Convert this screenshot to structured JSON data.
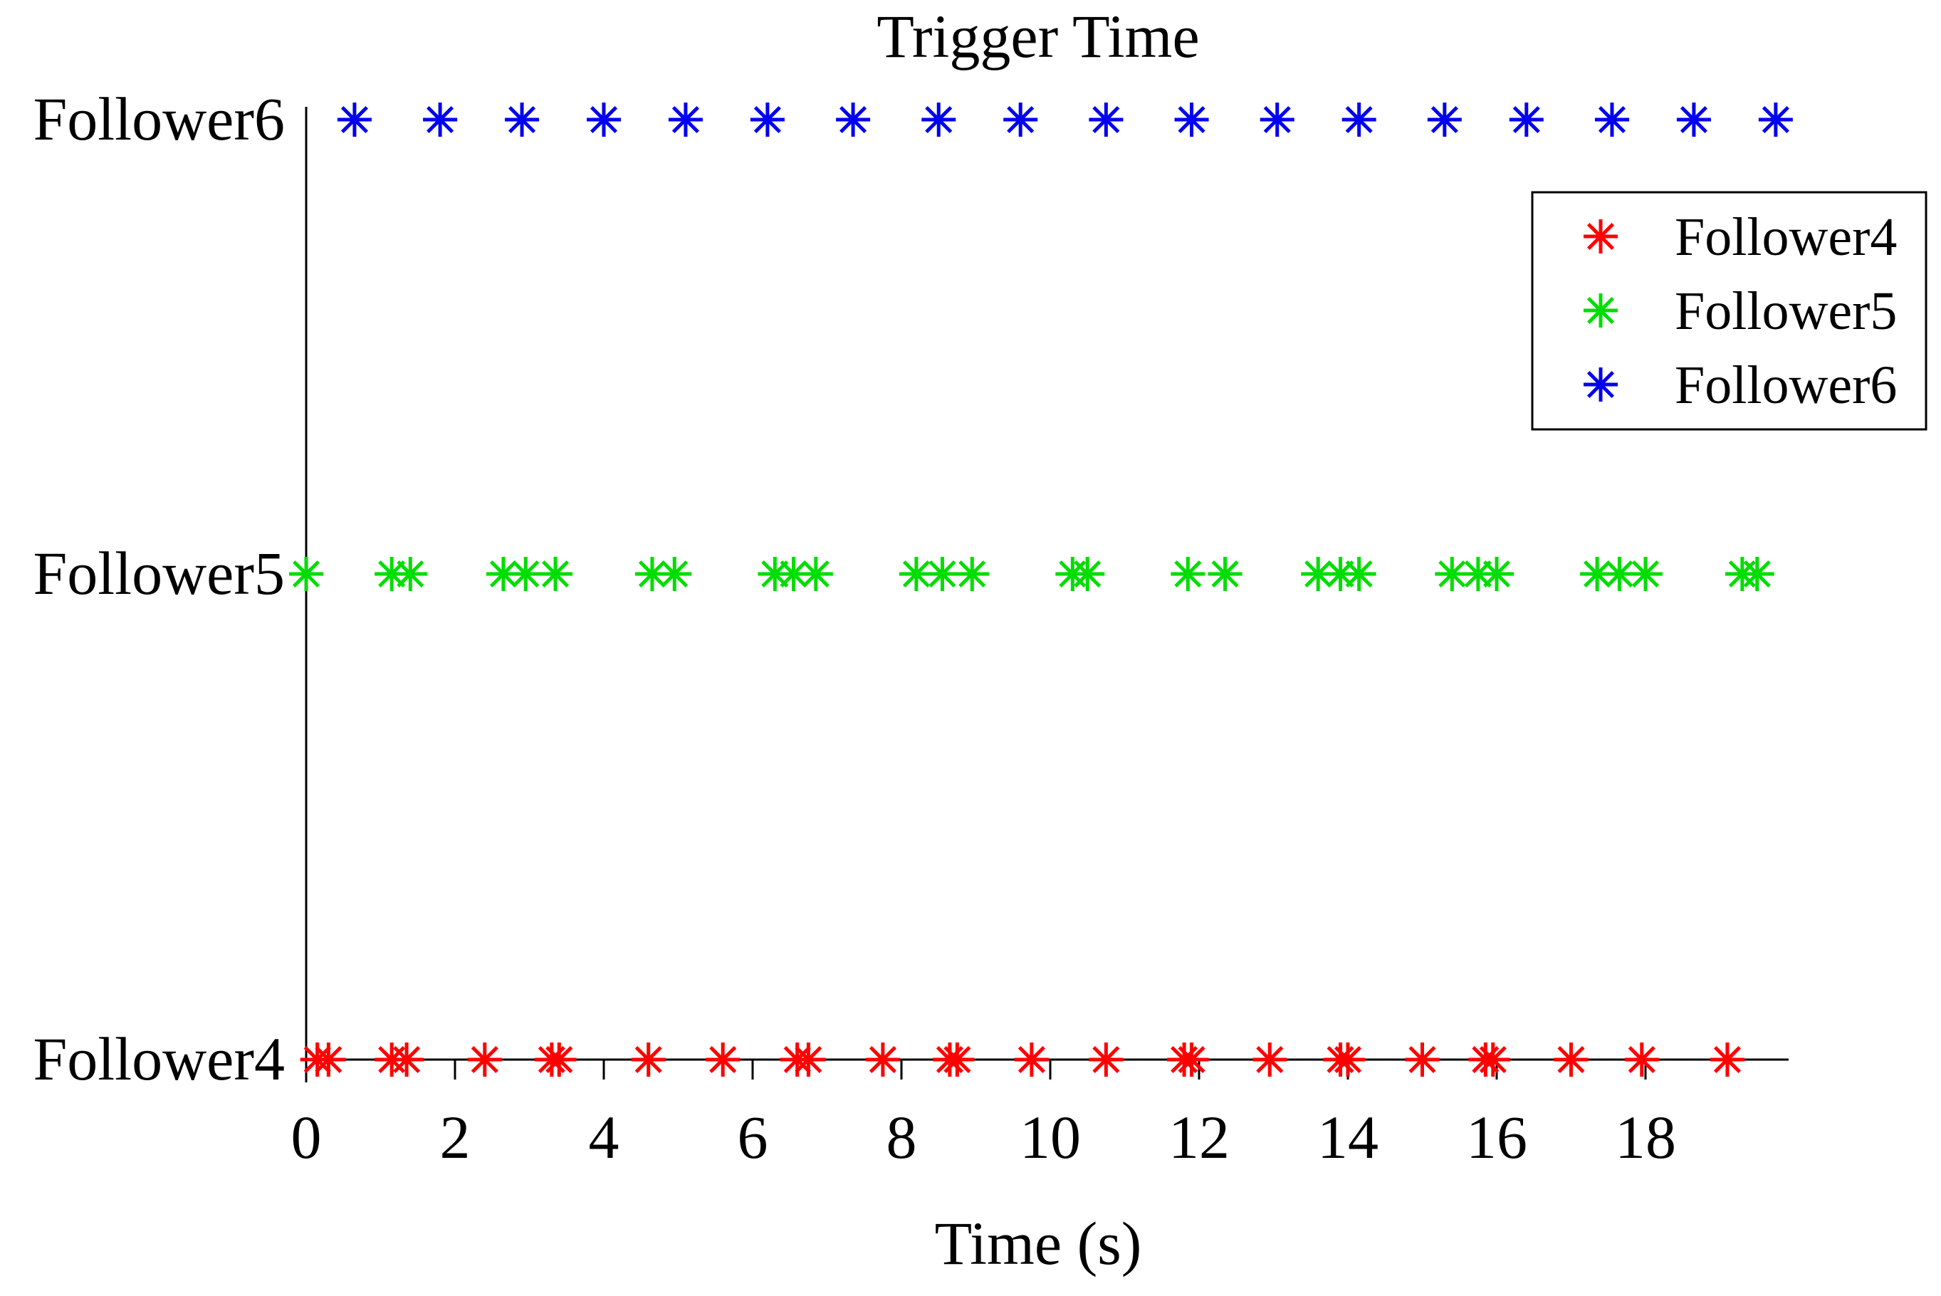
{
  "chart_data": {
    "type": "scatter",
    "title": "Trigger Time",
    "xlabel": "Time (s)",
    "ylabel": "",
    "xlim": [
      0,
      20
    ],
    "xticks": [
      0,
      2,
      4,
      6,
      8,
      10,
      12,
      14,
      16,
      18
    ],
    "ytick_labels": [
      "Follower4",
      "Follower5",
      "Follower6"
    ],
    "marker": "asterisk",
    "legend_position": "top-right",
    "grid": false,
    "series": [
      {
        "name": "Follower4",
        "color": "#ff0000",
        "level": "Follower4",
        "x": [
          0.15,
          0.3,
          1.15,
          1.35,
          2.4,
          3.3,
          3.4,
          4.6,
          5.6,
          6.6,
          6.75,
          7.75,
          8.65,
          8.75,
          9.75,
          10.75,
          11.8,
          11.9,
          12.95,
          13.9,
          14.0,
          15.0,
          15.85,
          15.95,
          17.0,
          17.95,
          19.1
        ]
      },
      {
        "name": "Follower5",
        "color": "#00dd00",
        "level": "Follower5",
        "x": [
          0.0,
          1.15,
          1.4,
          2.65,
          2.95,
          3.35,
          4.65,
          4.95,
          6.3,
          6.55,
          6.85,
          8.2,
          8.55,
          8.95,
          10.3,
          10.5,
          11.85,
          12.35,
          13.6,
          13.9,
          14.15,
          15.4,
          15.75,
          16.0,
          17.35,
          17.65,
          18.0,
          19.3,
          19.5
        ]
      },
      {
        "name": "Follower6",
        "color": "#0000ee",
        "level": "Follower6",
        "x": [
          0.65,
          1.8,
          2.9,
          4.0,
          5.1,
          6.2,
          7.35,
          8.5,
          9.6,
          10.75,
          11.9,
          13.05,
          14.15,
          15.3,
          16.4,
          17.55,
          18.65,
          19.75
        ]
      }
    ]
  }
}
